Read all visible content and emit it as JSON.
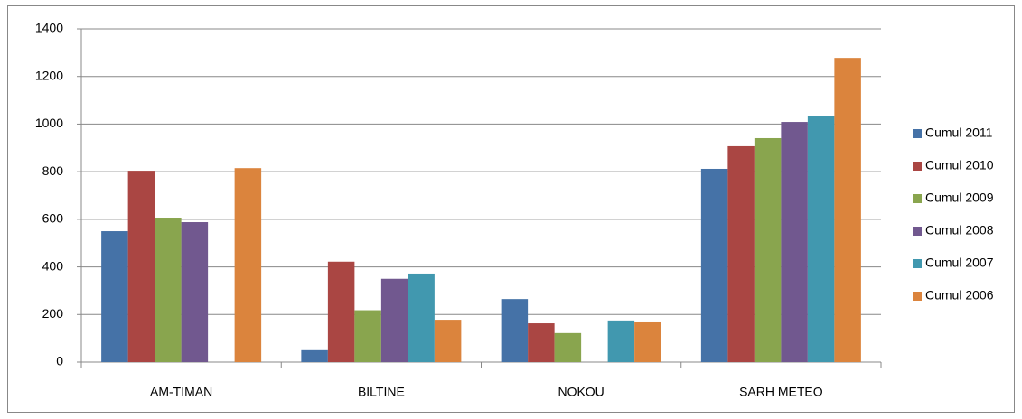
{
  "chart_data": {
    "type": "bar",
    "categories": [
      "AM-TIMAN",
      "BILTINE",
      "NOKOU",
      "SARH METEO"
    ],
    "series": [
      {
        "name": "Cumul 2011",
        "color": "#4572a7",
        "values": [
          550,
          50,
          265,
          812
        ]
      },
      {
        "name": "Cumul 2010",
        "color": "#aa4643",
        "values": [
          804,
          422,
          163,
          907
        ]
      },
      {
        "name": "Cumul 2009",
        "color": "#89a54e",
        "values": [
          607,
          218,
          122,
          941
        ]
      },
      {
        "name": "Cumul 2008",
        "color": "#71588f",
        "values": [
          588,
          350,
          null,
          1009
        ]
      },
      {
        "name": "Cumul 2007",
        "color": "#4198af",
        "values": [
          null,
          372,
          175,
          1032
        ]
      },
      {
        "name": "Cumul 2006",
        "color": "#db843d",
        "values": [
          815,
          178,
          167,
          1278
        ]
      }
    ],
    "ylim": [
      0,
      1400
    ],
    "yticks": [
      0,
      200,
      400,
      600,
      800,
      1000,
      1200,
      1400
    ],
    "grid": true,
    "legend": "right"
  }
}
